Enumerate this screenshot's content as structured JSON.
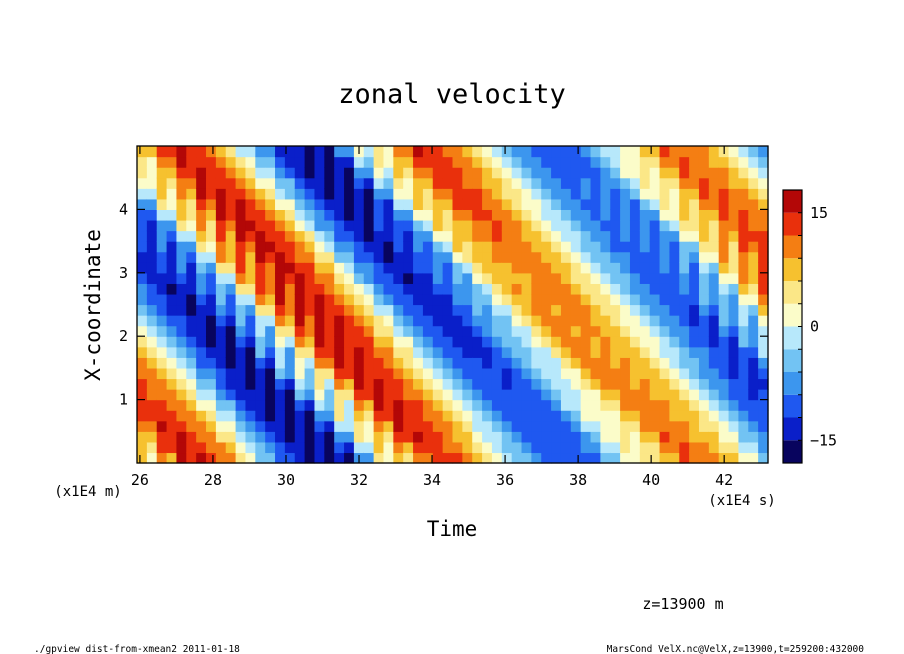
{
  "chart_data": {
    "type": "heatmap",
    "title": "zonal velocity",
    "xlabel": "Time",
    "ylabel": "X-coordinate",
    "x_unit_note": "(x1E4 s)",
    "y_unit_note": "(x1E4 m)",
    "xlim": [
      25.92,
      43.2
    ],
    "ylim": [
      0,
      5
    ],
    "x_ticks": [
      "26",
      "28",
      "30",
      "32",
      "34",
      "36",
      "38",
      "40",
      "42"
    ],
    "y_ticks": [
      "1",
      "2",
      "3",
      "4"
    ],
    "colorbar": {
      "min": -18,
      "max": 18,
      "tick_labels": [
        "15",
        "0",
        "−15"
      ],
      "tick_values": [
        15,
        0,
        -15
      ],
      "levels": [
        -18,
        -15,
        -12,
        -9,
        -6,
        -3,
        0,
        3,
        6,
        9,
        12,
        15,
        18
      ],
      "colors": [
        "#08045e",
        "#0a1fc9",
        "#1f58f0",
        "#3c96ee",
        "#72c3f3",
        "#b7e8fb",
        "#fbfcc9",
        "#fbe787",
        "#f6c12f",
        "#f47e13",
        "#e9300c",
        "#b30707"
      ]
    },
    "annotation": "z=13900 m",
    "footer_left": "./gpview_dist-from-xmean2  2011-01-18",
    "footer_right": "MarsCond_VelX.nc@VelX,z=13900,t=259200:432000"
  }
}
